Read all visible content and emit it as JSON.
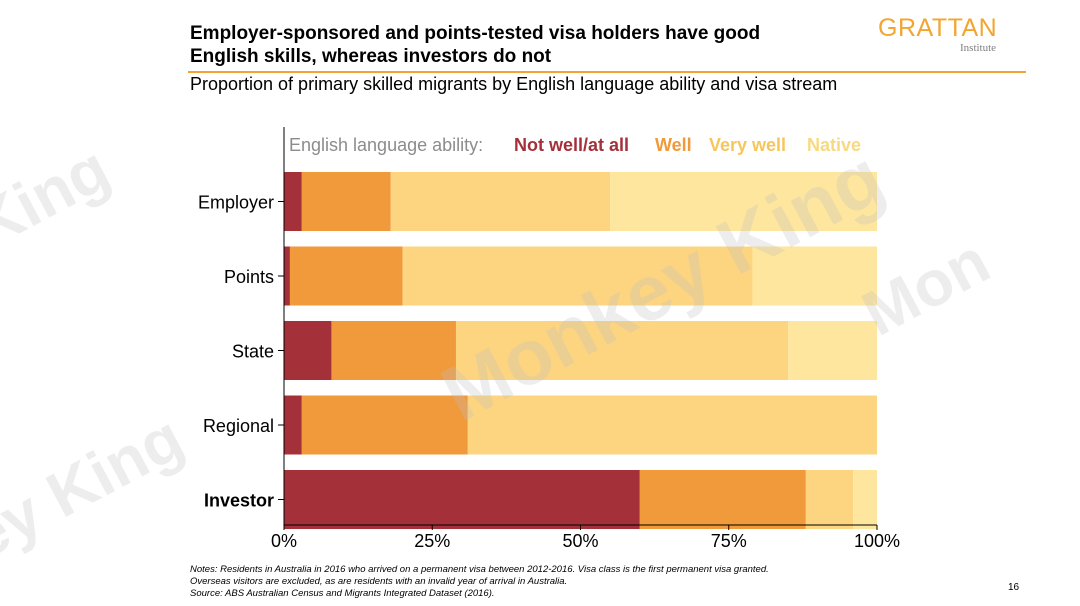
{
  "header": {
    "title": "Employer-sponsored and points-tested visa holders have good English skills, whereas investors do not",
    "subtitle": "Proportion of primary skilled migrants by English language ability and visa stream",
    "logo": {
      "name": "GRATTAN",
      "sub": "Institute"
    }
  },
  "chart_data": {
    "type": "bar",
    "orientation": "horizontal",
    "stacked": true,
    "legend_title": "English language ability:",
    "categories": [
      "Employer",
      "Points",
      "State",
      "Regional",
      "Investor"
    ],
    "bold_categories": [
      "Investor"
    ],
    "series": [
      {
        "name": "Not well/at all",
        "color": "#a4303a",
        "values": [
          0.03,
          0.01,
          0.08,
          0.03,
          0.6
        ]
      },
      {
        "name": "Well",
        "color": "#f09a3c",
        "values": [
          0.15,
          0.19,
          0.21,
          0.28,
          0.28
        ]
      },
      {
        "name": "Very well",
        "color": "#fdd581",
        "values": [
          0.37,
          0.59,
          0.56,
          0.69,
          0.08
        ]
      },
      {
        "name": "Native",
        "color": "#fee69e",
        "values": [
          0.45,
          0.21,
          0.15,
          0.0,
          0.04
        ]
      }
    ],
    "xlim": [
      0,
      1
    ],
    "xticks": [
      0,
      0.25,
      0.5,
      0.75,
      1
    ],
    "xtick_labels": [
      "0%",
      "25%",
      "50%",
      "75%",
      "100%"
    ],
    "legend_position": "top"
  },
  "notes": {
    "line1": "Notes: Residents in Australia in 2016 who arrived on a permanent visa between 2012-2016. Visa class is the first permanent visa granted.",
    "line2": "Overseas visitors are excluded, as are residents with an invalid year of arrival in Australia.",
    "line3": "Source: ABS Australian Census and Migrants Integrated Dataset (2016)."
  },
  "page_number": "16",
  "colors": {
    "accent": "#f3a531"
  }
}
